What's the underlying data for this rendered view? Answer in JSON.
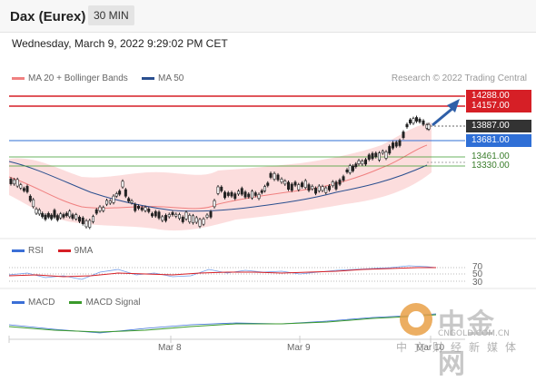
{
  "header": {
    "title": "Dax (Eurex)",
    "timeframe": "30 MIN"
  },
  "datetime": "Wednesday, March 9, 2022 9:29:02 PM CET",
  "legend": {
    "bb_label": "MA 20 + Bollinger Bands",
    "bb_color": "#f08080",
    "ma50_label": "MA 50",
    "ma50_color": "#2a4f8f"
  },
  "research": "Research © 2022 Trading Central",
  "levels": {
    "r2": "14288.00",
    "r1": "14157.00",
    "last": "13887.00",
    "pivot": "13681.00",
    "s1": "13461.00",
    "s2": "13330.00"
  },
  "rsi": {
    "label": "RSI",
    "ma_label": "9MA",
    "rsi_color": "#3b6fd6",
    "ma_color": "#d61f26",
    "ticks": [
      "70",
      "50",
      "30"
    ]
  },
  "macd": {
    "label": "MACD",
    "signal_label": "MACD Signal",
    "macd_color": "#3b6fd6",
    "signal_color": "#3a9a2b"
  },
  "xaxis": [
    "Mar 8",
    "Mar 9",
    "Mar 10"
  ],
  "watermark": {
    "text": "中金网",
    "sub": "CNGOLD.COM.CN",
    "cn": "中文财经新媒体"
  }
}
